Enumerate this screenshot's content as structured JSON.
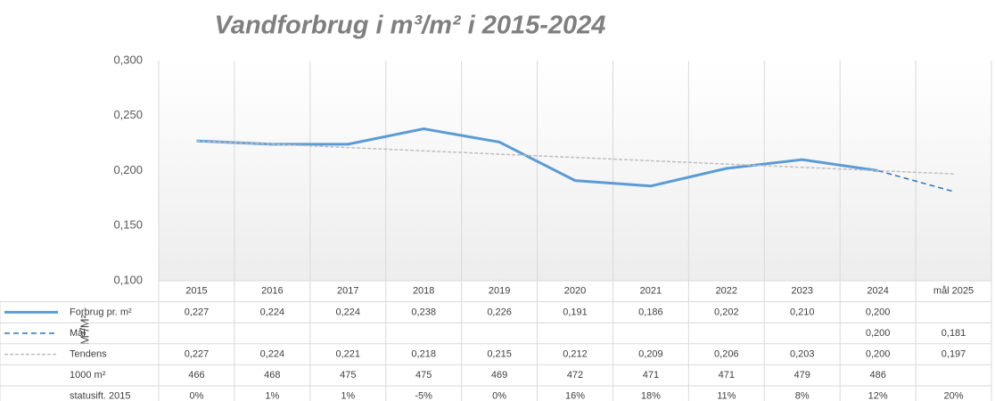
{
  "chart_data": {
    "type": "line",
    "title": "Vandforbrug i m³/m² i 2015-2024",
    "y_label": "M³/M²",
    "categories": [
      "2015",
      "2016",
      "2017",
      "2018",
      "2019",
      "2020",
      "2021",
      "2022",
      "2023",
      "2024",
      "mål 2025"
    ],
    "ylim": [
      0.1,
      0.3
    ],
    "yticks": [
      {
        "value": 0.1,
        "label": "0,100"
      },
      {
        "value": 0.15,
        "label": "0,150"
      },
      {
        "value": 0.2,
        "label": "0,200"
      },
      {
        "value": 0.25,
        "label": "0,250"
      },
      {
        "value": 0.3,
        "label": "0,300"
      }
    ],
    "grid": true,
    "series": [
      {
        "name": "Forbrug pr. m²",
        "color": "#5b9bd5",
        "style": "solid",
        "values": [
          0.227,
          0.224,
          0.224,
          0.238,
          0.226,
          0.191,
          0.186,
          0.202,
          0.21,
          0.2,
          null
        ],
        "value_labels": [
          "0,227",
          "0,224",
          "0,224",
          "0,238",
          "0,226",
          "0,191",
          "0,186",
          "0,202",
          "0,210",
          "0,200",
          null
        ]
      },
      {
        "name": "Mål",
        "color": "#2e75b6",
        "style": "dashed",
        "values": [
          null,
          null,
          null,
          null,
          null,
          null,
          null,
          null,
          null,
          0.2,
          0.181
        ],
        "value_labels": [
          null,
          null,
          null,
          null,
          null,
          null,
          null,
          null,
          null,
          "0,200",
          "0,181"
        ]
      },
      {
        "name": "Tendens",
        "color": "#bfbfbf",
        "style": "dashed",
        "values": [
          0.227,
          0.224,
          0.221,
          0.218,
          0.215,
          0.212,
          0.209,
          0.206,
          0.203,
          0.2,
          0.197
        ],
        "value_labels": [
          "0,227",
          "0,224",
          "0,221",
          "0,218",
          "0,215",
          "0,212",
          "0,209",
          "0,206",
          "0,203",
          "0,200",
          "0,197"
        ]
      }
    ],
    "table_rows": [
      {
        "name": "1000 m²",
        "values": [
          466,
          468,
          475,
          475,
          469,
          472,
          471,
          471,
          479,
          486,
          null
        ]
      },
      {
        "name": "statusift. 2015",
        "values": [
          0,
          1,
          1,
          -5,
          0,
          16,
          18,
          11,
          8,
          12,
          20
        ],
        "value_labels": [
          "0%",
          "1%",
          "1%",
          "-5%",
          "0%",
          "16%",
          "18%",
          "11%",
          "8%",
          "12%",
          "20%"
        ]
      }
    ]
  }
}
